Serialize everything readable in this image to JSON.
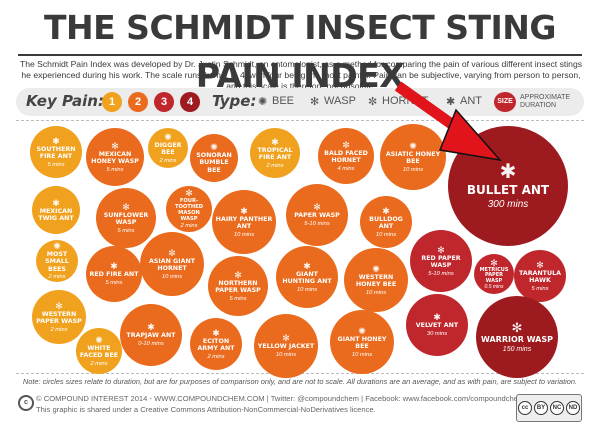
{
  "title": "THE SCHMIDT INSECT STING PAIN INDEX",
  "intro": "The Schmidt Pain Index was developed by Dr. Justin Schmidt, an entomologist, as a method for comparing the pain of various different insect stings he experienced during his work. The scale runs from 1 to 4, with four being the most painful. Pain can be subjective, varying from person to person, and this scale is therefore not absolute.",
  "key": {
    "pain_label": "Key Pain:",
    "levels": [
      "1",
      "2",
      "3",
      "4"
    ],
    "type_label": "Type:",
    "types": [
      "BEE",
      "WASP",
      "HORNET",
      "ANT"
    ],
    "size_label": "SIZE",
    "approx_label": "APPROXIMATE DURATION"
  },
  "colors": {
    "pain1": "#f0a21f",
    "pain2": "#ea6b1d",
    "pain3": "#c0272d",
    "pain4": "#9d1a1e",
    "arrow": "#e1141b"
  },
  "insects": [
    {
      "name": "SOUTHERN FIRE ANT",
      "duration": "5 mins",
      "pain": 1,
      "icon": "ant-icon"
    },
    {
      "name": "MEXICAN HONEY WASP",
      "duration": "5 mins",
      "pain": 2,
      "icon": "wasp-icon"
    },
    {
      "name": "DIGGER BEE",
      "duration": "2 mins",
      "pain": 1,
      "icon": "bee-icon"
    },
    {
      "name": "SONORAN BUMBLE BEE",
      "duration": "",
      "pain": 2,
      "icon": "bee-icon"
    },
    {
      "name": "TROPICAL FIRE ANT",
      "duration": "2 mins",
      "pain": 1,
      "icon": "ant-icon"
    },
    {
      "name": "BALD FACED HORNET",
      "duration": "4 mins",
      "pain": 2,
      "icon": "hornet-icon"
    },
    {
      "name": "ASIATIC HONEY BEE",
      "duration": "10 mins",
      "pain": 2,
      "icon": "bee-icon"
    },
    {
      "name": "BULLET ANT",
      "duration": "300 mins",
      "pain": 4,
      "icon": "ant-icon"
    },
    {
      "name": "MEXICAN TWIG ANT",
      "duration": "",
      "pain": 1,
      "icon": "ant-icon"
    },
    {
      "name": "SUNFLOWER WASP",
      "duration": "5 mins",
      "pain": 2,
      "icon": "wasp-icon"
    },
    {
      "name": "FOUR-TOOTHED MASON WASP",
      "duration": "2 mins",
      "pain": 2,
      "icon": "wasp-icon"
    },
    {
      "name": "HAIRY PANTHER ANT",
      "duration": "10 mins",
      "pain": 2,
      "icon": "ant-icon"
    },
    {
      "name": "PAPER WASP",
      "duration": "5-10 mins",
      "pain": 2,
      "icon": "wasp-icon"
    },
    {
      "name": "BULLDOG ANT",
      "duration": "10 mins",
      "pain": 2,
      "icon": "ant-icon"
    },
    {
      "name": "MOST SMALL BEES",
      "duration": "2 mins",
      "pain": 1,
      "icon": "bee-icon"
    },
    {
      "name": "RED FIRE ANT",
      "duration": "5 mins",
      "pain": 2,
      "icon": "ant-icon"
    },
    {
      "name": "ASIAN GIANT HORNET",
      "duration": "10 mins",
      "pain": 2,
      "icon": "hornet-icon"
    },
    {
      "name": "NORTHERN PAPER WASP",
      "duration": "5 mins",
      "pain": 2,
      "icon": "wasp-icon"
    },
    {
      "name": "GIANT HUNTING ANT",
      "duration": "10 mins",
      "pain": 2,
      "icon": "ant-icon"
    },
    {
      "name": "WESTERN HONEY BEE",
      "duration": "10 mins",
      "pain": 2,
      "icon": "bee-icon"
    },
    {
      "name": "RED PAPER WASP",
      "duration": "5-10 mins",
      "pain": 3,
      "icon": "wasp-icon"
    },
    {
      "name": "METRICUS PAPER WASP",
      "duration": "0.5 mins",
      "pain": 3,
      "icon": "wasp-icon"
    },
    {
      "name": "TARANTULA HAWK",
      "duration": "5 mins",
      "pain": 3,
      "icon": "wasp-icon"
    },
    {
      "name": "WESTERN PAPER WASP",
      "duration": "2 mins",
      "pain": 1,
      "icon": "wasp-icon"
    },
    {
      "name": "WHITE FACED BEE",
      "duration": "2 mins",
      "pain": 1,
      "icon": "bee-icon"
    },
    {
      "name": "TRAPJAW ANT",
      "duration": "0-10 mins",
      "pain": 2,
      "icon": "ant-icon"
    },
    {
      "name": "ECITON ARMY ANT",
      "duration": "2 mins",
      "pain": 2,
      "icon": "ant-icon"
    },
    {
      "name": "YELLOW JACKET",
      "duration": "10 mins",
      "pain": 2,
      "icon": "wasp-icon"
    },
    {
      "name": "GIANT HONEY BEE",
      "duration": "10 mins",
      "pain": 2,
      "icon": "bee-icon"
    },
    {
      "name": "VELVET ANT",
      "duration": "30 mins",
      "pain": 3,
      "icon": "ant-icon"
    },
    {
      "name": "WARRIOR WASP",
      "duration": "150 mins",
      "pain": 4,
      "icon": "wasp-icon"
    }
  ],
  "note": "Note: circles sizes relate to duration, but are for purposes of comparison only, and are not to scale. All durations are an average, and as with pain, are subject to variation.",
  "footer": {
    "line1": "© COMPOUND INTEREST 2014 - WWW.COMPOUNDCHEM.COM | Twitter: @compoundchem | Facebook: www.facebook.com/compoundchem",
    "line2": "This graphic is shared under a Creative Commons Attribution-NonCommercial-NoDerivatives licence.",
    "cc_badges": [
      "cc",
      "BY",
      "NC",
      "ND"
    ]
  }
}
